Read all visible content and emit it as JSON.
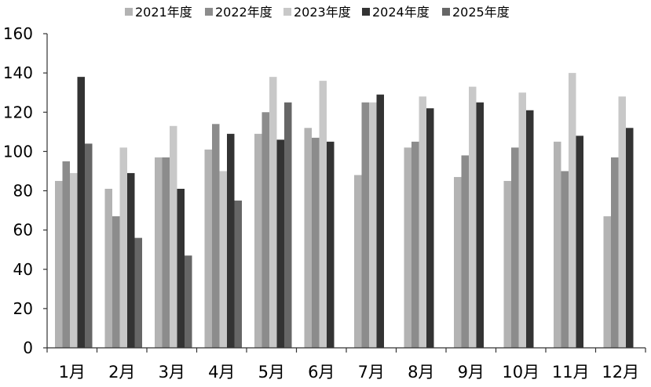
{
  "chart_data": {
    "type": "bar",
    "title": "",
    "xlabel": "",
    "ylabel": "",
    "ylim": [
      0,
      160
    ],
    "yticks": [
      0,
      20,
      40,
      60,
      80,
      100,
      120,
      140,
      160
    ],
    "grid": false,
    "legend_position": "top",
    "categories": [
      "1月",
      "2月",
      "3月",
      "4月",
      "5月",
      "6月",
      "7月",
      "8月",
      "9月",
      "10月",
      "11月",
      "12月"
    ],
    "series": [
      {
        "name": "2021年度",
        "color": "#b3b3b3",
        "values": [
          85,
          81,
          97,
          101,
          109,
          112,
          88,
          102,
          87,
          85,
          105,
          67
        ]
      },
      {
        "name": "2022年度",
        "color": "#8c8c8c",
        "values": [
          95,
          67,
          97,
          114,
          120,
          107,
          125,
          105,
          98,
          102,
          90,
          97
        ]
      },
      {
        "name": "2023年度",
        "color": "#c8c8c8",
        "values": [
          89,
          102,
          113,
          90,
          138,
          136,
          125,
          128,
          133,
          130,
          140,
          128
        ]
      },
      {
        "name": "2024年度",
        "color": "#333333",
        "values": [
          138,
          89,
          81,
          109,
          106,
          105,
          129,
          122,
          125,
          121,
          108,
          112
        ]
      },
      {
        "name": "2025年度",
        "color": "#666666",
        "values": [
          104,
          56,
          47,
          75,
          125,
          null,
          null,
          null,
          null,
          null,
          null,
          null
        ]
      }
    ]
  }
}
